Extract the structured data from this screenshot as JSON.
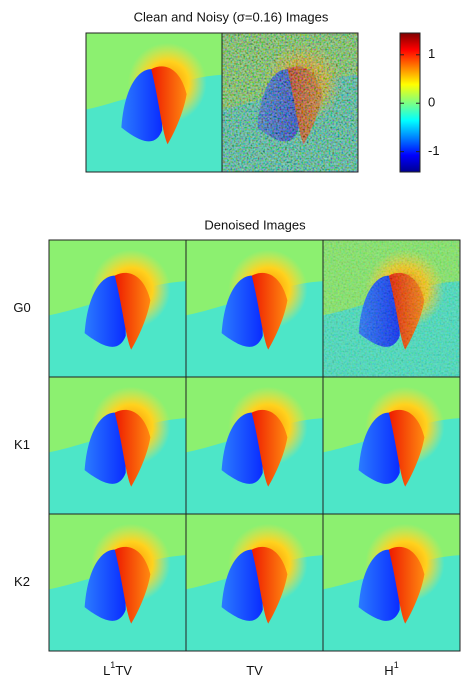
{
  "top_title": "Clean and Noisy (σ=0.16) Images",
  "colorbar": {
    "lim": [
      -1.42,
      1.45
    ],
    "ticks": [
      1,
      0,
      -1
    ]
  },
  "bottom_title": "Denoised Images",
  "rows": [
    "G0",
    "K1",
    "K2"
  ],
  "columns": [
    {
      "base": "L",
      "sup": "1",
      "tail": "TV"
    },
    {
      "base": "TV"
    },
    {
      "base": "H",
      "sup": "1"
    }
  ]
}
